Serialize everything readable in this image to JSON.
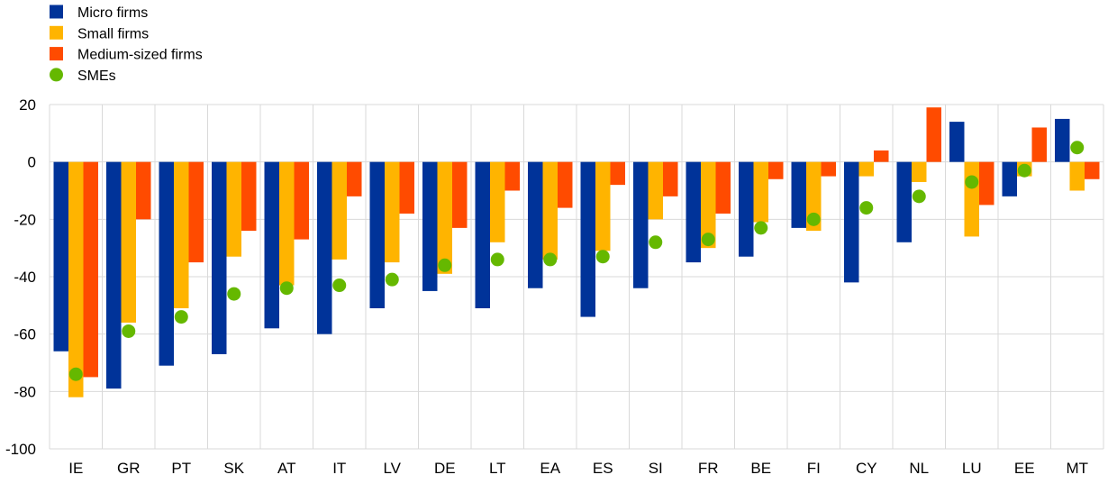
{
  "chart_data": {
    "type": "bar",
    "categories": [
      "IE",
      "GR",
      "PT",
      "SK",
      "AT",
      "IT",
      "LV",
      "DE",
      "LT",
      "EA",
      "ES",
      "SI",
      "FR",
      "BE",
      "FI",
      "CY",
      "NL",
      "LU",
      "EE",
      "MT"
    ],
    "series": [
      {
        "name": "Micro firms",
        "kind": "bar",
        "color": "#003399",
        "values": [
          -66,
          -79,
          -71,
          -67,
          -58,
          -60,
          -51,
          -45,
          -51,
          -44,
          -54,
          -44,
          -35,
          -33,
          -23,
          -42,
          -28,
          14,
          -12,
          15
        ]
      },
      {
        "name": "Small firms",
        "kind": "bar",
        "color": "#FFB400",
        "values": [
          -82,
          -56,
          -51,
          -33,
          -43,
          -34,
          -35,
          -39,
          -28,
          -34,
          -31,
          -20,
          -30,
          -21,
          -24,
          -5,
          -7,
          -26,
          -5,
          -10
        ]
      },
      {
        "name": "Medium-sized firms",
        "kind": "bar",
        "color": "#FF4B00",
        "values": [
          -75,
          -20,
          -35,
          -24,
          -27,
          -12,
          -18,
          -23,
          -10,
          -16,
          -8,
          -12,
          -18,
          -6,
          -5,
          4,
          19,
          -15,
          12,
          -6
        ]
      },
      {
        "name": "SMEs",
        "kind": "point",
        "color": "#65B800",
        "values": [
          -74,
          -59,
          -54,
          -46,
          -44,
          -43,
          -41,
          -36,
          -34,
          -34,
          -33,
          -28,
          -27,
          -23,
          -20,
          -16,
          -12,
          -7,
          -3,
          5
        ]
      }
    ],
    "ylim": [
      -100,
      20
    ],
    "yticks": [
      20,
      0,
      -20,
      -40,
      -60,
      -80,
      -100
    ],
    "grid": true,
    "legend_position": "top-left"
  }
}
